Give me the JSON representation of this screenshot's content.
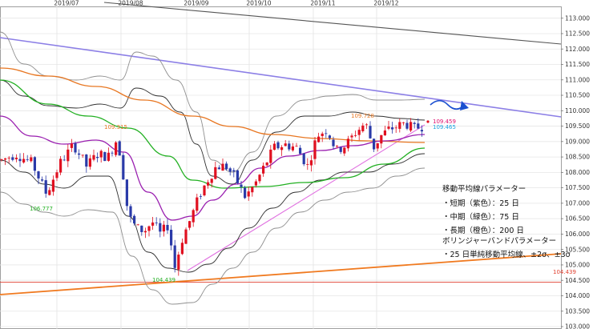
{
  "chart_data": {
    "type": "candlestick",
    "x_dates": [
      "2019/07",
      "2019/08",
      "2019/09",
      "2019/10",
      "2019/11",
      "2019/12"
    ],
    "y_ticks": [
      "113.000",
      "112.500",
      "112.000",
      "111.500",
      "111.000",
      "110.500",
      "110.000",
      "109.500",
      "109.000",
      "108.500",
      "108.000",
      "107.500",
      "107.000",
      "106.500",
      "106.000",
      "105.500",
      "105.000",
      "104.500",
      "104.000",
      "103.500",
      "103.000"
    ],
    "ylim": [
      103.0,
      113.2
    ],
    "annotations": [
      {
        "text": "109.315",
        "value": 109.315,
        "color": "#e87722"
      },
      {
        "text": "109.728",
        "value": 109.728,
        "color": "#e87722"
      },
      {
        "text": "109.459",
        "value": 109.459,
        "color": "#e0106f"
      },
      {
        "text": "109.465",
        "value": 109.465,
        "color": "#1aa3e0"
      },
      {
        "text": "106.777",
        "value": 106.777,
        "color": "#22b022"
      },
      {
        "text": "104.439",
        "value": 104.439,
        "color": "#22b022"
      },
      {
        "text": "104.439",
        "value": 104.439,
        "color": "#e04030"
      }
    ],
    "legend_lines": [
      "移動平均線パラメーター",
      "・短期（紫色）：25 日",
      "・中期（緑色）：75 日",
      "・長期（橙色）：200 日",
      "ボリンジャーバンドパラメーター",
      "・25 日単純移動平均線、±2σ、±3σ"
    ],
    "colors": {
      "up": "#e01020",
      "down": "#2a3aa8",
      "ma_short": "#9a1fb0",
      "ma_mid": "#22b022",
      "ma_long": "#e87722",
      "band": "#555555",
      "trend_purple": "#8c7fe6",
      "trend_gray": "#555555",
      "trend_orange": "#f07a20",
      "trend_pink": "#e070e0",
      "hline": "#e04030",
      "forecast": "#1a4fd0"
    }
  }
}
